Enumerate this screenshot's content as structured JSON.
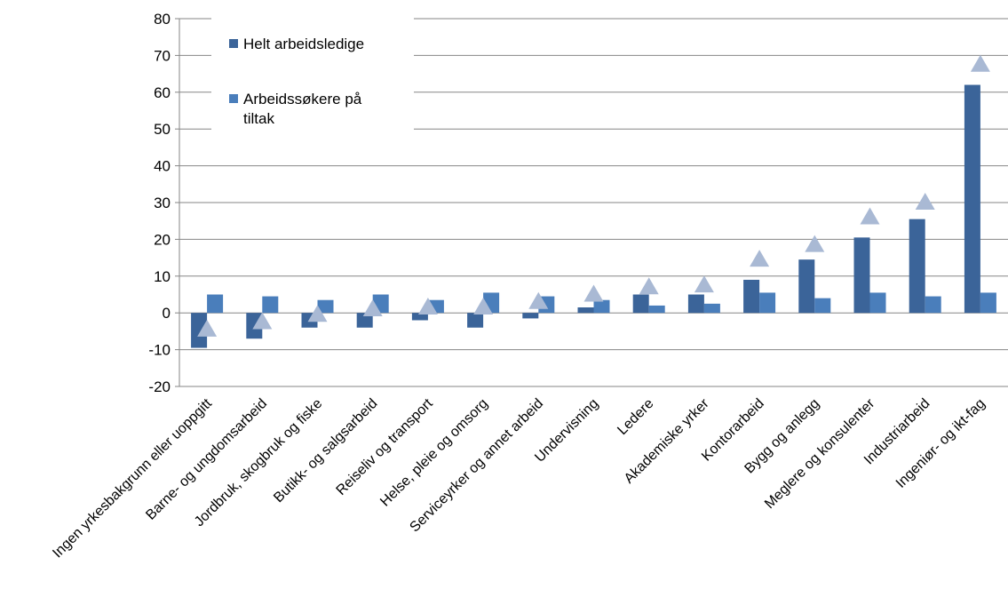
{
  "chart_data": {
    "type": "bar",
    "title": "",
    "xlabel": "",
    "ylabel": "",
    "ylim": [
      -20,
      80
    ],
    "yticks": [
      -20,
      -10,
      0,
      10,
      20,
      30,
      40,
      50,
      60,
      70,
      80
    ],
    "grid": true,
    "legend_position": "top-left",
    "categories": [
      "Ingen yrkesbakgrunn eller uoppgitt",
      "Barne- og ungdomsarbeid",
      "Jordbruk, skogbruk og fiske",
      "Butikk- og salgsarbeid",
      "Reiseliv og transport",
      "Helse, pleie og omsorg",
      "Serviceyrker og annet arbeid",
      "Undervisning",
      "Ledere",
      "Akademiske yrker",
      "Kontorarbeid",
      "Bygg og anlegg",
      "Meglere og konsulenter",
      "Industriarbeid",
      "Ingeniør- og ikt-fag"
    ],
    "series": [
      {
        "name": "Helt arbeidsledige",
        "kind": "bar",
        "color": "#3b6499",
        "values": [
          -9.5,
          -7,
          -4,
          -4,
          -2,
          -4,
          -1.5,
          1.5,
          5,
          5,
          9,
          14.5,
          20.5,
          25.5,
          62
        ]
      },
      {
        "name": "Arbeidssøkere på tiltak",
        "kind": "bar",
        "color": "#4a7ebb",
        "values": [
          5,
          4.5,
          3.5,
          5,
          3.5,
          5.5,
          4.5,
          3.5,
          2,
          2.5,
          5.5,
          4,
          5.5,
          4.5,
          5.5
        ]
      },
      {
        "kind": "marker",
        "marker": "triangle",
        "color": "#a9b9d4",
        "values": [
          -4.5,
          -2.5,
          -0.5,
          1,
          1.5,
          1.5,
          3,
          5,
          7,
          7.5,
          14.5,
          18.5,
          26,
          30,
          67.5
        ]
      }
    ]
  }
}
